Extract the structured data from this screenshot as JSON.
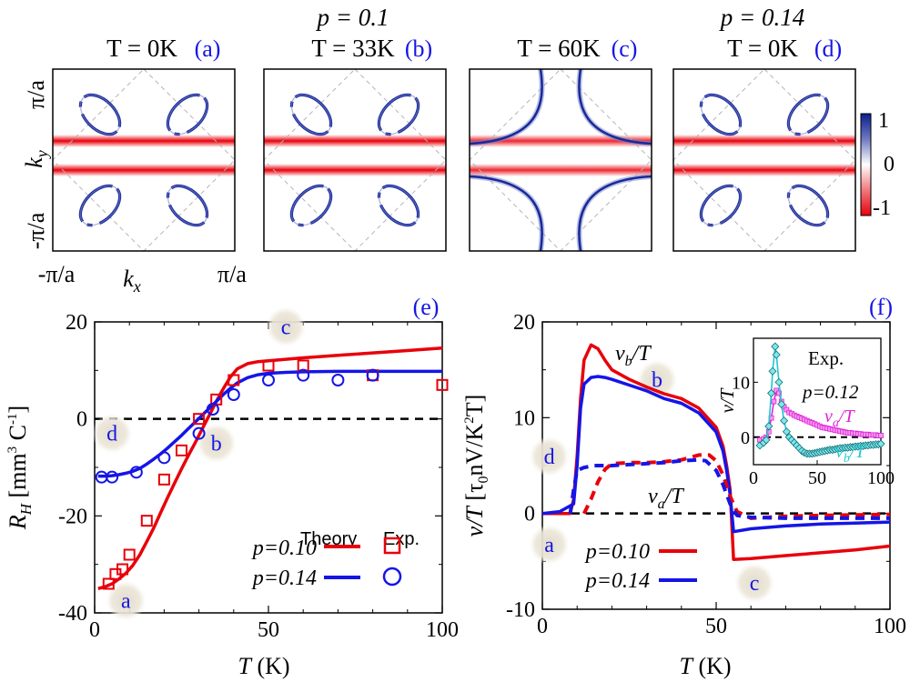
{
  "top_panels": [
    {
      "id": "a",
      "tag": "(a)",
      "title_p": "",
      "title_T": "T = 0K",
      "type": "pockets"
    },
    {
      "id": "b",
      "tag": "(b)",
      "title_p": "p = 0.1",
      "title_T": "T = 33K",
      "type": "pockets"
    },
    {
      "id": "c",
      "tag": "(c)",
      "title_p": "",
      "title_T": "T = 60K",
      "type": "large"
    },
    {
      "id": "d",
      "tag": "(d)",
      "title_p": "p = 0.14",
      "title_T": "T = 0K",
      "type": "pockets"
    }
  ],
  "top_axes": {
    "y_top": "π/a",
    "y_bottom": "-π/a",
    "y_label": "k",
    "y_sub": "y",
    "x_left": "-π/a",
    "x_right": "π/a",
    "x_label": "k",
    "x_sub": "x"
  },
  "colorbar": {
    "ticks": [
      "1",
      "0",
      "-1"
    ],
    "colors": {
      "high": "#0a1f8c",
      "mid": "#ffffff",
      "low": "#e8000a"
    }
  },
  "chart_data": [
    {
      "id": "e",
      "tag": "(e)",
      "type": "line",
      "title": "",
      "xlabel": "T (K)",
      "ylabel": "R_H [mm^3 C^-1]",
      "ylabel_main": "R",
      "ylabel_sub": "H",
      "ylabel_units": "[mm",
      "ylabel_sup": "3",
      "ylabel_units2": " C",
      "ylabel_sup2": "-1",
      "ylabel_close": "]",
      "xlim": [
        0,
        100
      ],
      "ylim": [
        -40,
        20
      ],
      "xticks": [
        0,
        50,
        100
      ],
      "yticks": [
        -40,
        -20,
        0,
        20
      ],
      "series": [
        {
          "name": "p=0.10 Theory",
          "color": "#e8000a",
          "style": "line",
          "x": [
            1,
            3,
            5,
            7,
            9,
            11,
            13,
            15,
            17,
            19,
            21,
            23,
            25,
            27,
            29,
            31,
            33,
            35,
            37,
            39,
            41,
            44,
            47,
            50,
            55,
            60,
            70,
            80,
            90,
            100
          ],
          "y": [
            -35,
            -34.6,
            -34,
            -33,
            -31.8,
            -30.2,
            -28,
            -25.3,
            -22.5,
            -19.3,
            -16.2,
            -13.2,
            -10.3,
            -7.5,
            -4.8,
            -2,
            0.8,
            3.6,
            6.2,
            8.6,
            10.3,
            11.4,
            11.8,
            12,
            12.3,
            12.6,
            13.1,
            13.6,
            14.1,
            14.6
          ]
        },
        {
          "name": "p=0.14 Theory",
          "color": "#1515e6",
          "style": "line",
          "x": [
            1,
            3,
            5,
            7,
            9,
            11,
            13,
            15,
            17,
            19,
            21,
            23,
            25,
            27,
            29,
            31,
            33,
            35,
            37,
            39,
            41,
            44,
            47,
            50,
            55,
            60,
            70,
            80,
            90,
            100
          ],
          "y": [
            -11.8,
            -11.8,
            -11.7,
            -11.5,
            -11.2,
            -10.8,
            -10.2,
            -9.3,
            -8.3,
            -7.2,
            -6,
            -4.7,
            -3.4,
            -2,
            -0.6,
            0.8,
            2.2,
            3.6,
            5,
            6.3,
            7.4,
            8.5,
            9.1,
            9.4,
            9.6,
            9.7,
            9.8,
            9.8,
            9.8,
            9.8
          ]
        },
        {
          "name": "p=0.10 Exp.",
          "color": "#e8000a",
          "style": "square",
          "x": [
            4,
            6,
            8,
            10,
            15,
            20,
            25,
            30,
            35,
            40,
            50,
            60,
            80,
            100
          ],
          "y": [
            -34,
            -32,
            -31,
            -28,
            -21,
            -12.5,
            -6.5,
            0,
            4,
            8,
            11,
            11,
            9,
            7
          ]
        },
        {
          "name": "p=0.14 Exp.",
          "color": "#1515e6",
          "style": "circle",
          "x": [
            2,
            5,
            12,
            20,
            30,
            34,
            40,
            50,
            60,
            70,
            80
          ],
          "y": [
            -12,
            -12,
            -11,
            -8,
            -3,
            2,
            5,
            8,
            9,
            8,
            9
          ]
        }
      ],
      "legend": {
        "theory": "Theory",
        "exp": "Exp.",
        "p10": "p=0.10",
        "p14": "p=0.14"
      },
      "annotations": [
        {
          "text": "a",
          "x": 9,
          "y": -39
        },
        {
          "text": "b",
          "x": 35,
          "y": -6.5
        },
        {
          "text": "c",
          "x": 55,
          "y": 17.5
        },
        {
          "text": "d",
          "x": 5,
          "y": -4.5
        }
      ]
    },
    {
      "id": "f",
      "tag": "(f)",
      "type": "line",
      "title": "",
      "xlabel": "T (K)",
      "ylabel": "ν/T [τ0 nV/K^2T]",
      "ylabel_main": "ν/T",
      "ylabel_units": "[τ",
      "ylabel_sub": "0",
      "ylabel_units2": "nV/K",
      "ylabel_sup": "2",
      "ylabel_units3": "T]",
      "xlim": [
        0,
        100
      ],
      "ylim": [
        -10,
        20
      ],
      "xticks": [
        0,
        50,
        100
      ],
      "yticks": [
        -10,
        0,
        10,
        20
      ],
      "series": [
        {
          "name": "p=0.10 nu_b/T",
          "color": "#e8000a",
          "dash": false,
          "x": [
            0,
            8,
            9,
            10,
            11,
            12,
            14,
            16,
            18,
            20,
            25,
            30,
            35,
            40,
            45,
            50,
            52,
            53,
            54,
            55,
            60,
            70,
            80,
            90,
            100
          ],
          "y": [
            0,
            0,
            1.5,
            6,
            12,
            16,
            17.6,
            17.2,
            16,
            15,
            14,
            13.2,
            12.5,
            12,
            11,
            9,
            7,
            5,
            2.5,
            -4.8,
            -4.7,
            -4.4,
            -4.1,
            -3.8,
            -3.4
          ]
        },
        {
          "name": "p=0.14 nu_b/T",
          "color": "#1515e6",
          "dash": false,
          "x": [
            0,
            5,
            9,
            10,
            11,
            12,
            14,
            16,
            18,
            20,
            25,
            30,
            35,
            40,
            45,
            50,
            52,
            53,
            54,
            55,
            60,
            70,
            80,
            90,
            100
          ],
          "y": [
            0,
            0.2,
            1,
            5,
            11,
            13.5,
            14.2,
            14.3,
            14.2,
            14,
            13.4,
            12.8,
            12,
            11.5,
            10.5,
            8.5,
            6.5,
            4.5,
            2,
            -1.9,
            -1.6,
            -1.3,
            -1.1,
            -1,
            -0.9
          ]
        },
        {
          "name": "p=0.10 nu_a/T",
          "color": "#e8000a",
          "dash": true,
          "x": [
            12,
            14,
            16,
            18,
            20,
            25,
            30,
            35,
            40,
            45,
            48,
            50,
            52,
            54,
            56,
            60,
            70,
            80,
            100
          ],
          "y": [
            0,
            1.5,
            3.3,
            4.6,
            5.2,
            5.3,
            5.3,
            5.4,
            5.6,
            6.1,
            6.1,
            5.5,
            4,
            1.8,
            0.2,
            -0.5,
            -0.3,
            -0.2,
            -0.1
          ]
        },
        {
          "name": "p=0.14 nu_a/T",
          "color": "#1515e6",
          "dash": true,
          "x": [
            8,
            9,
            10,
            12,
            15,
            20,
            25,
            30,
            35,
            40,
            45,
            47,
            50,
            52,
            54,
            56,
            60,
            70,
            80,
            100
          ],
          "y": [
            0,
            2.5,
            4.5,
            4.8,
            5,
            5,
            5.1,
            5.2,
            5.3,
            5.5,
            5.6,
            5.5,
            4.5,
            3,
            1,
            -0.2,
            -0.4,
            -0.5,
            -0.5,
            -0.5
          ]
        }
      ],
      "labels": {
        "nub": "ν",
        "nub_sub": "b",
        "nub_rest": "/T",
        "nua": "ν",
        "nua_sub": "a",
        "nua_rest": "/T"
      },
      "legend": {
        "p10": "p=0.10",
        "p14": "p=0.14"
      },
      "annotations": [
        {
          "text": "b",
          "x": 33,
          "y": 13.2
        },
        {
          "text": "d",
          "x": 2,
          "y": 5.2
        },
        {
          "text": "a",
          "x": 2,
          "y": -4
        },
        {
          "text": "c",
          "x": 61,
          "y": -8
        }
      ],
      "inset": {
        "title": "Exp.",
        "p_label": "p=0.12",
        "ylabel": "ν/T",
        "xlim": [
          0,
          100
        ],
        "ylim": [
          -5,
          18
        ],
        "xticks": [
          0,
          50,
          100
        ],
        "yticks": [
          0,
          10
        ],
        "label_a": "ν",
        "label_a_sub": "a",
        "label_a_rest": "/T",
        "label_b": "ν",
        "label_b_sub": "b",
        "label_b_rest": "/T",
        "series_b": {
          "color": "#1fc8d0",
          "x": [
            5,
            8,
            10,
            12,
            14,
            15,
            17,
            18,
            20,
            22,
            24,
            26,
            28,
            30,
            32,
            34,
            36,
            38,
            40,
            42,
            44,
            46,
            48,
            50,
            52,
            54,
            56,
            58,
            60,
            62,
            64,
            66,
            68,
            70,
            72,
            74,
            76,
            78,
            80,
            82,
            84,
            86,
            88,
            90,
            92,
            94,
            96,
            98,
            100
          ],
          "y": [
            -1.5,
            -1,
            -0.5,
            2,
            8,
            12,
            16.5,
            15,
            10,
            6,
            3,
            1,
            0,
            -0.5,
            -1,
            -1.5,
            -2,
            -2.5,
            -2.8,
            -3,
            -3,
            -3,
            -2.9,
            -2.8,
            -2.7,
            -2.6,
            -2.5,
            -2.4,
            -2.3,
            -2.3,
            -2.2,
            -2.1,
            -2,
            -2,
            -1.9,
            -1.9,
            -1.8,
            -1.8,
            -1.7,
            -1.7,
            -1.6,
            -1.6,
            -1.5,
            -1.5,
            -1.4,
            -1.4,
            -1.3,
            -1.3,
            -1.2
          ]
        },
        "series_a": {
          "color": "#e020d8",
          "x": [
            5,
            8,
            10,
            12,
            14,
            16,
            18,
            20,
            22,
            24,
            26,
            28,
            30,
            32,
            34,
            36,
            38,
            40,
            42,
            44,
            46,
            48,
            50,
            52,
            54,
            56,
            58,
            60,
            62,
            64,
            66,
            68,
            70,
            72,
            74,
            76,
            78,
            80,
            82,
            84,
            86,
            88,
            90,
            92,
            94,
            96,
            98,
            100
          ],
          "y": [
            -0.5,
            -0.3,
            0,
            1,
            3.5,
            6.5,
            8.5,
            8,
            6.5,
            5.5,
            5,
            4.5,
            4.3,
            4,
            3.8,
            3.6,
            3.4,
            3.2,
            3,
            2.8,
            2.6,
            2.4,
            2.2,
            2,
            1.8,
            1.7,
            1.6,
            1.5,
            1.4,
            1.3,
            1.2,
            1.1,
            1,
            0.9,
            0.8,
            0.8,
            0.7,
            0.7,
            0.6,
            0.6,
            0.5,
            0.5,
            0.5,
            0.4,
            0.4,
            0.4,
            0.3,
            0.3
          ]
        }
      }
    }
  ]
}
